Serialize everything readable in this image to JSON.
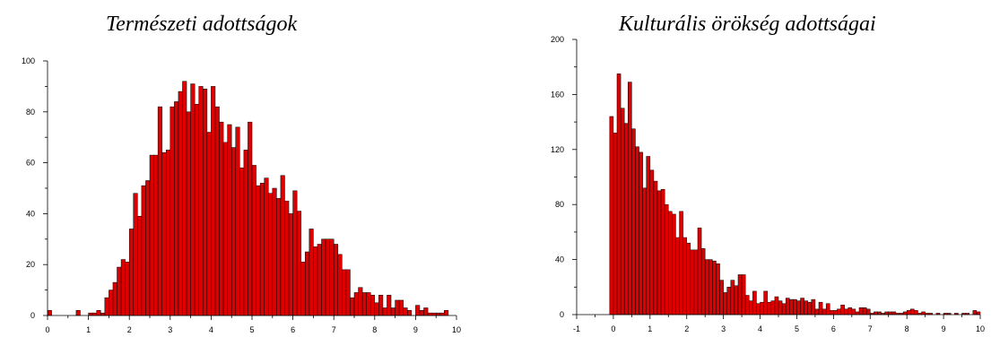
{
  "chart_data": [
    {
      "type": "bar",
      "title": "Természeti adottságok",
      "xlabel": "",
      "ylabel": "",
      "xlim": [
        0,
        10
      ],
      "ylim": [
        0,
        100
      ],
      "xticks": [
        "0",
        "1",
        "2",
        "3",
        "4",
        "5",
        "6",
        "7",
        "8",
        "9",
        "10"
      ],
      "yticks": [
        "0",
        "20",
        "40",
        "60",
        "80",
        "100"
      ],
      "bin_width": 0.1,
      "bar_color": "#dd0000",
      "grid": false,
      "bins": [
        {
          "x": 0.0,
          "y": 2
        },
        {
          "x": 0.7,
          "y": 2
        },
        {
          "x": 1.0,
          "y": 1
        },
        {
          "x": 1.1,
          "y": 1
        },
        {
          "x": 1.2,
          "y": 2
        },
        {
          "x": 1.3,
          "y": 1
        },
        {
          "x": 1.4,
          "y": 7
        },
        {
          "x": 1.5,
          "y": 10
        },
        {
          "x": 1.6,
          "y": 13
        },
        {
          "x": 1.7,
          "y": 19
        },
        {
          "x": 1.8,
          "y": 22
        },
        {
          "x": 1.9,
          "y": 21
        },
        {
          "x": 2.0,
          "y": 34
        },
        {
          "x": 2.1,
          "y": 48
        },
        {
          "x": 2.2,
          "y": 39
        },
        {
          "x": 2.3,
          "y": 51
        },
        {
          "x": 2.4,
          "y": 53
        },
        {
          "x": 2.5,
          "y": 63
        },
        {
          "x": 2.6,
          "y": 63
        },
        {
          "x": 2.7,
          "y": 82
        },
        {
          "x": 2.8,
          "y": 64
        },
        {
          "x": 2.9,
          "y": 65
        },
        {
          "x": 3.0,
          "y": 82
        },
        {
          "x": 3.1,
          "y": 84
        },
        {
          "x": 3.2,
          "y": 88
        },
        {
          "x": 3.3,
          "y": 92
        },
        {
          "x": 3.4,
          "y": 80
        },
        {
          "x": 3.5,
          "y": 91
        },
        {
          "x": 3.6,
          "y": 83
        },
        {
          "x": 3.7,
          "y": 90
        },
        {
          "x": 3.8,
          "y": 89
        },
        {
          "x": 3.9,
          "y": 72
        },
        {
          "x": 4.0,
          "y": 90
        },
        {
          "x": 4.1,
          "y": 82
        },
        {
          "x": 4.2,
          "y": 76
        },
        {
          "x": 4.3,
          "y": 68
        },
        {
          "x": 4.4,
          "y": 75
        },
        {
          "x": 4.5,
          "y": 66
        },
        {
          "x": 4.6,
          "y": 74
        },
        {
          "x": 4.7,
          "y": 58
        },
        {
          "x": 4.8,
          "y": 65
        },
        {
          "x": 4.9,
          "y": 76
        },
        {
          "x": 5.0,
          "y": 59
        },
        {
          "x": 5.1,
          "y": 51
        },
        {
          "x": 5.2,
          "y": 52
        },
        {
          "x": 5.3,
          "y": 54
        },
        {
          "x": 5.4,
          "y": 48
        },
        {
          "x": 5.5,
          "y": 50
        },
        {
          "x": 5.6,
          "y": 46
        },
        {
          "x": 5.7,
          "y": 55
        },
        {
          "x": 5.8,
          "y": 45
        },
        {
          "x": 5.9,
          "y": 40
        },
        {
          "x": 6.0,
          "y": 49
        },
        {
          "x": 6.1,
          "y": 41
        },
        {
          "x": 6.2,
          "y": 21
        },
        {
          "x": 6.3,
          "y": 25
        },
        {
          "x": 6.4,
          "y": 34
        },
        {
          "x": 6.5,
          "y": 27
        },
        {
          "x": 6.6,
          "y": 28
        },
        {
          "x": 6.7,
          "y": 30
        },
        {
          "x": 6.8,
          "y": 30
        },
        {
          "x": 6.9,
          "y": 30
        },
        {
          "x": 7.0,
          "y": 28
        },
        {
          "x": 7.1,
          "y": 24
        },
        {
          "x": 7.2,
          "y": 18
        },
        {
          "x": 7.3,
          "y": 18
        },
        {
          "x": 7.4,
          "y": 7
        },
        {
          "x": 7.5,
          "y": 9
        },
        {
          "x": 7.6,
          "y": 11
        },
        {
          "x": 7.7,
          "y": 9
        },
        {
          "x": 7.8,
          "y": 9
        },
        {
          "x": 7.9,
          "y": 8
        },
        {
          "x": 8.0,
          "y": 5
        },
        {
          "x": 8.1,
          "y": 8
        },
        {
          "x": 8.2,
          "y": 3
        },
        {
          "x": 8.3,
          "y": 8
        },
        {
          "x": 8.4,
          "y": 3
        },
        {
          "x": 8.5,
          "y": 6
        },
        {
          "x": 8.6,
          "y": 6
        },
        {
          "x": 8.7,
          "y": 3
        },
        {
          "x": 8.8,
          "y": 2
        },
        {
          "x": 9.0,
          "y": 4
        },
        {
          "x": 9.1,
          "y": 2
        },
        {
          "x": 9.2,
          "y": 3
        },
        {
          "x": 9.3,
          "y": 1
        },
        {
          "x": 9.4,
          "y": 1
        },
        {
          "x": 9.5,
          "y": 1
        },
        {
          "x": 9.6,
          "y": 1
        },
        {
          "x": 9.7,
          "y": 2
        }
      ]
    },
    {
      "type": "bar",
      "title": "Kulturális örökség adottságai",
      "xlabel": "",
      "ylabel": "",
      "xlim": [
        -1,
        10
      ],
      "ylim": [
        0,
        200
      ],
      "xticks": [
        "-1",
        "0",
        "1",
        "2",
        "3",
        "4",
        "5",
        "6",
        "7",
        "8",
        "9",
        "10"
      ],
      "yticks": [
        "0",
        "40",
        "80",
        "120",
        "160",
        "200"
      ],
      "bin_width": 0.1,
      "bar_color": "#dd0000",
      "grid": false,
      "bins": [
        {
          "x": -0.1,
          "y": 144
        },
        {
          "x": 0.0,
          "y": 132
        },
        {
          "x": 0.1,
          "y": 175
        },
        {
          "x": 0.2,
          "y": 150
        },
        {
          "x": 0.3,
          "y": 139
        },
        {
          "x": 0.4,
          "y": 169
        },
        {
          "x": 0.5,
          "y": 135
        },
        {
          "x": 0.6,
          "y": 122
        },
        {
          "x": 0.7,
          "y": 118
        },
        {
          "x": 0.8,
          "y": 92
        },
        {
          "x": 0.9,
          "y": 115
        },
        {
          "x": 1.0,
          "y": 105
        },
        {
          "x": 1.1,
          "y": 97
        },
        {
          "x": 1.2,
          "y": 90
        },
        {
          "x": 1.3,
          "y": 91
        },
        {
          "x": 1.4,
          "y": 80
        },
        {
          "x": 1.5,
          "y": 75
        },
        {
          "x": 1.6,
          "y": 73
        },
        {
          "x": 1.7,
          "y": 56
        },
        {
          "x": 1.8,
          "y": 75
        },
        {
          "x": 1.9,
          "y": 56
        },
        {
          "x": 2.0,
          "y": 52
        },
        {
          "x": 2.1,
          "y": 47
        },
        {
          "x": 2.2,
          "y": 47
        },
        {
          "x": 2.3,
          "y": 63
        },
        {
          "x": 2.4,
          "y": 48
        },
        {
          "x": 2.5,
          "y": 40
        },
        {
          "x": 2.6,
          "y": 40
        },
        {
          "x": 2.7,
          "y": 39
        },
        {
          "x": 2.8,
          "y": 37
        },
        {
          "x": 2.9,
          "y": 25
        },
        {
          "x": 3.0,
          "y": 16
        },
        {
          "x": 3.1,
          "y": 20
        },
        {
          "x": 3.2,
          "y": 25
        },
        {
          "x": 3.3,
          "y": 21
        },
        {
          "x": 3.4,
          "y": 29
        },
        {
          "x": 3.5,
          "y": 29
        },
        {
          "x": 3.6,
          "y": 14
        },
        {
          "x": 3.7,
          "y": 10
        },
        {
          "x": 3.8,
          "y": 17
        },
        {
          "x": 3.9,
          "y": 8
        },
        {
          "x": 4.0,
          "y": 9
        },
        {
          "x": 4.1,
          "y": 17
        },
        {
          "x": 4.2,
          "y": 9
        },
        {
          "x": 4.3,
          "y": 10
        },
        {
          "x": 4.4,
          "y": 13
        },
        {
          "x": 4.5,
          "y": 10
        },
        {
          "x": 4.6,
          "y": 8
        },
        {
          "x": 4.7,
          "y": 12
        },
        {
          "x": 4.8,
          "y": 11
        },
        {
          "x": 4.9,
          "y": 11
        },
        {
          "x": 5.0,
          "y": 10
        },
        {
          "x": 5.1,
          "y": 12
        },
        {
          "x": 5.2,
          "y": 10
        },
        {
          "x": 5.3,
          "y": 9
        },
        {
          "x": 5.4,
          "y": 11
        },
        {
          "x": 5.5,
          "y": 4
        },
        {
          "x": 5.6,
          "y": 9
        },
        {
          "x": 5.7,
          "y": 4
        },
        {
          "x": 5.8,
          "y": 8
        },
        {
          "x": 5.9,
          "y": 3
        },
        {
          "x": 6.0,
          "y": 3
        },
        {
          "x": 6.1,
          "y": 4
        },
        {
          "x": 6.2,
          "y": 7
        },
        {
          "x": 6.3,
          "y": 4
        },
        {
          "x": 6.4,
          "y": 5
        },
        {
          "x": 6.5,
          "y": 4
        },
        {
          "x": 6.6,
          "y": 2
        },
        {
          "x": 6.7,
          "y": 5
        },
        {
          "x": 6.8,
          "y": 5
        },
        {
          "x": 6.9,
          "y": 4
        },
        {
          "x": 7.0,
          "y": 1
        },
        {
          "x": 7.1,
          "y": 2
        },
        {
          "x": 7.2,
          "y": 2
        },
        {
          "x": 7.3,
          "y": 1
        },
        {
          "x": 7.4,
          "y": 2
        },
        {
          "x": 7.5,
          "y": 2
        },
        {
          "x": 7.6,
          "y": 2
        },
        {
          "x": 7.7,
          "y": 1
        },
        {
          "x": 7.8,
          "y": 1
        },
        {
          "x": 7.9,
          "y": 2
        },
        {
          "x": 8.0,
          "y": 3
        },
        {
          "x": 8.1,
          "y": 4
        },
        {
          "x": 8.2,
          "y": 3
        },
        {
          "x": 8.3,
          "y": 1
        },
        {
          "x": 8.4,
          "y": 2
        },
        {
          "x": 8.5,
          "y": 1
        },
        {
          "x": 8.6,
          "y": 1
        },
        {
          "x": 8.8,
          "y": 1
        },
        {
          "x": 9.0,
          "y": 1
        },
        {
          "x": 9.1,
          "y": 1
        },
        {
          "x": 9.3,
          "y": 1
        },
        {
          "x": 9.5,
          "y": 1
        },
        {
          "x": 9.6,
          "y": 1
        },
        {
          "x": 9.8,
          "y": 3
        },
        {
          "x": 9.9,
          "y": 2
        }
      ]
    }
  ]
}
